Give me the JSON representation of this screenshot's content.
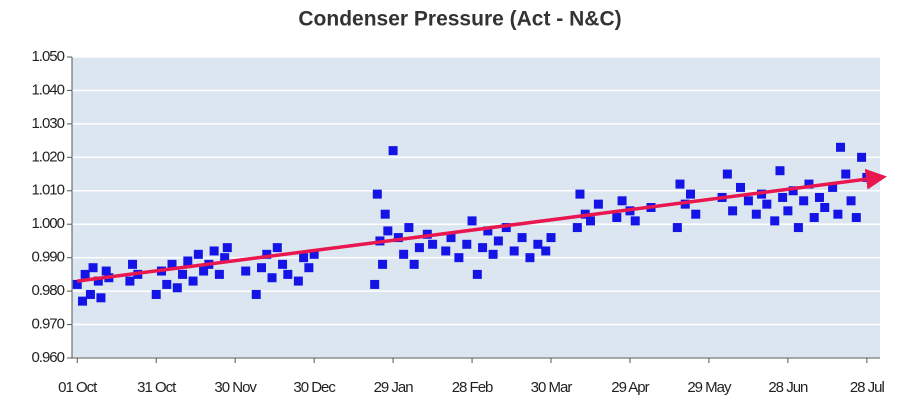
{
  "chart_data": {
    "type": "scatter",
    "title": "Condenser Pressure (Act - N&C)",
    "xlim": [
      -2,
      305
    ],
    "ylim": [
      0.96,
      1.05
    ],
    "xticks": [
      {
        "value": 0,
        "label": "01 Oct"
      },
      {
        "value": 30,
        "label": "31 Oct"
      },
      {
        "value": 60,
        "label": "30 Nov"
      },
      {
        "value": 90,
        "label": "30 Dec"
      },
      {
        "value": 120,
        "label": "29 Jan"
      },
      {
        "value": 150,
        "label": "28 Feb"
      },
      {
        "value": 180,
        "label": "30 Mar"
      },
      {
        "value": 210,
        "label": "29 Apr"
      },
      {
        "value": 240,
        "label": "29 May"
      },
      {
        "value": 270,
        "label": "28 Jun"
      },
      {
        "value": 300,
        "label": "28 Jul"
      }
    ],
    "yticks": [
      {
        "value": 0.96,
        "label": "0.960"
      },
      {
        "value": 0.97,
        "label": "0.970"
      },
      {
        "value": 0.98,
        "label": "0.980"
      },
      {
        "value": 0.99,
        "label": "0.990"
      },
      {
        "value": 1.0,
        "label": "1.000"
      },
      {
        "value": 1.01,
        "label": "1.010"
      },
      {
        "value": 1.02,
        "label": "1.020"
      },
      {
        "value": 1.03,
        "label": "1.030"
      },
      {
        "value": 1.04,
        "label": "1.040"
      },
      {
        "value": 1.05,
        "label": "1.050"
      }
    ],
    "grid": true,
    "series": [
      {
        "color": "#1414e6",
        "x": [
          0,
          2,
          3,
          5,
          6,
          8,
          9,
          11,
          12,
          20,
          21,
          23,
          30,
          32,
          34,
          36,
          38,
          40,
          42,
          44,
          46,
          48,
          50,
          52,
          54,
          56,
          57,
          64,
          68,
          70,
          72,
          74,
          76,
          78,
          80,
          84,
          86,
          88,
          90,
          113,
          114,
          115,
          116,
          117,
          118,
          120,
          122,
          124,
          126,
          128,
          130,
          133,
          135,
          140,
          142,
          145,
          148,
          150,
          152,
          154,
          156,
          158,
          160,
          163,
          166,
          169,
          172,
          175,
          178,
          180,
          190,
          191,
          193,
          195,
          198,
          205,
          207,
          210,
          212,
          218,
          228,
          229,
          231,
          233,
          235,
          245,
          247,
          249,
          252,
          255,
          258,
          260,
          262,
          265,
          267,
          268,
          270,
          272,
          274,
          276,
          278,
          280,
          282,
          284,
          287,
          289,
          290,
          292,
          294,
          296,
          298,
          300
        ],
        "values": [
          0.982,
          0.977,
          0.985,
          0.979,
          0.987,
          0.983,
          0.978,
          0.986,
          0.984,
          0.983,
          0.988,
          0.985,
          0.979,
          0.986,
          0.982,
          0.988,
          0.981,
          0.985,
          0.989,
          0.983,
          0.991,
          0.986,
          0.988,
          0.992,
          0.985,
          0.99,
          0.993,
          0.986,
          0.979,
          0.987,
          0.991,
          0.984,
          0.993,
          0.988,
          0.985,
          0.983,
          0.99,
          0.987,
          0.991,
          0.982,
          1.009,
          0.995,
          0.988,
          1.003,
          0.998,
          1.022,
          0.996,
          0.991,
          0.999,
          0.988,
          0.993,
          0.997,
          0.994,
          0.992,
          0.996,
          0.99,
          0.994,
          1.001,
          0.985,
          0.993,
          0.998,
          0.991,
          0.995,
          0.999,
          0.992,
          0.996,
          0.99,
          0.994,
          0.992,
          0.996,
          0.999,
          1.009,
          1.003,
          1.001,
          1.006,
          1.002,
          1.007,
          1.004,
          1.001,
          1.005,
          0.999,
          1.012,
          1.006,
          1.009,
          1.003,
          1.008,
          1.015,
          1.004,
          1.011,
          1.007,
          1.003,
          1.009,
          1.006,
          1.001,
          1.016,
          1.008,
          1.004,
          1.01,
          0.999,
          1.007,
          1.012,
          1.002,
          1.008,
          1.005,
          1.011,
          1.003,
          1.023,
          1.015,
          1.007,
          1.002,
          1.02,
          1.014
        ]
      }
    ],
    "trend": {
      "color": "#e8174f",
      "x": [
        0,
        305
      ],
      "values": [
        0.983,
        1.014
      ]
    }
  }
}
